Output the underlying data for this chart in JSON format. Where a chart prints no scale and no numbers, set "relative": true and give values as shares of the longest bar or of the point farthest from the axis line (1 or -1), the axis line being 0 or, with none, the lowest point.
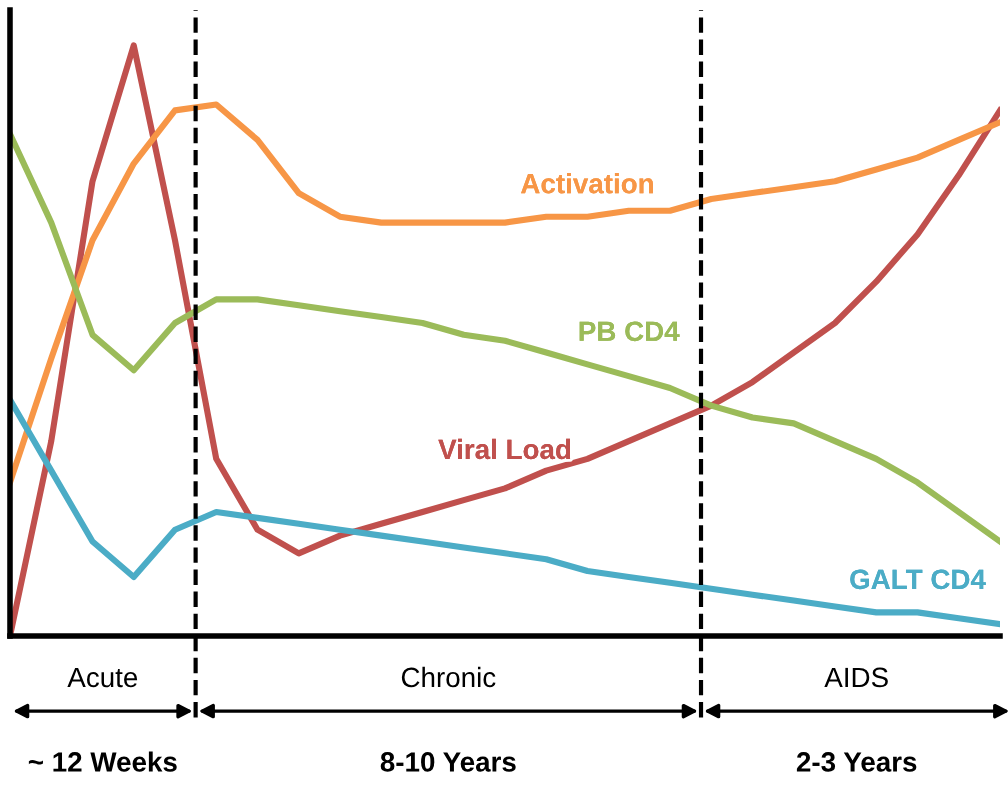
{
  "chart_data": {
    "type": "line",
    "relative": true,
    "categories": [
      null,
      null,
      null,
      null,
      null,
      null,
      null,
      null,
      null,
      null,
      null,
      null,
      null,
      null,
      null,
      null,
      null,
      null,
      null,
      null,
      null,
      null,
      null,
      null,
      null
    ],
    "series": [
      {
        "name": "Viral Load",
        "color": "#c0504d",
        "values": [
          0,
          0.33,
          0.77,
          1.0,
          0.67,
          0.3,
          0.18,
          0.14,
          0.17,
          0.19,
          0.21,
          0.23,
          0.25,
          0.28,
          0.3,
          0.33,
          0.36,
          0.39,
          0.43,
          0.48,
          0.53,
          0.6,
          0.68,
          0.78,
          0.89
        ]
      },
      {
        "name": "Activation",
        "color": "#f79646",
        "values": [
          0.26,
          0.47,
          0.67,
          0.8,
          0.89,
          0.9,
          0.84,
          0.75,
          0.71,
          0.7,
          0.7,
          0.7,
          0.7,
          0.71,
          0.71,
          0.72,
          0.72,
          0.74,
          0.75,
          0.76,
          0.77,
          0.79,
          0.81,
          0.84,
          0.87
        ]
      },
      {
        "name": "PB CD4",
        "color": "#9bbb59",
        "values": [
          0.85,
          0.7,
          0.51,
          0.45,
          0.53,
          0.57,
          0.57,
          0.56,
          0.55,
          0.54,
          0.53,
          0.51,
          0.5,
          0.48,
          0.46,
          0.44,
          0.42,
          0.39,
          0.37,
          0.36,
          0.33,
          0.3,
          0.26,
          0.21,
          0.16
        ]
      },
      {
        "name": "GALT CD4",
        "color": "#4bacc6",
        "values": [
          0.4,
          0.28,
          0.16,
          0.1,
          0.18,
          0.21,
          0.2,
          0.19,
          0.18,
          0.17,
          0.16,
          0.15,
          0.14,
          0.13,
          0.11,
          0.1,
          0.09,
          0.08,
          0.07,
          0.06,
          0.05,
          0.04,
          0.04,
          0.03,
          0.02
        ]
      }
    ],
    "annotations": [
      "Acute",
      "Chronic",
      "AIDS",
      "~ 12 Weeks",
      "8-10 Years",
      "2-3 Years"
    ],
    "legend": false,
    "marker": "none",
    "line_style": "solid"
  }
}
